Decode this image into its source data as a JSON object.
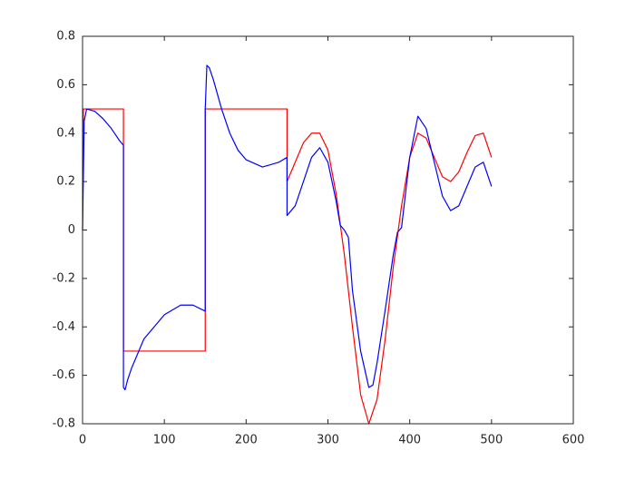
{
  "chart_data": {
    "type": "line",
    "xlim": [
      0,
      600
    ],
    "ylim": [
      -0.8,
      0.8
    ],
    "xticks": [
      0,
      100,
      200,
      300,
      400,
      500,
      600
    ],
    "yticks": [
      -0.8,
      -0.6,
      -0.4,
      -0.2,
      0,
      0.2,
      0.4,
      0.6,
      0.8
    ],
    "grid": false,
    "series": [
      {
        "color": "#ff0000",
        "x": [
          0,
          1,
          50,
          50,
          150,
          150,
          250,
          250,
          260,
          270,
          280,
          290,
          300,
          310,
          320,
          330,
          340,
          350,
          360,
          370,
          380,
          390,
          400,
          410,
          420,
          430,
          440,
          450,
          460,
          470,
          480,
          490,
          500
        ],
        "values": [
          0,
          0.5,
          0.5,
          -0.5,
          -0.5,
          0.5,
          0.5,
          0.2,
          0.28,
          0.36,
          0.4,
          0.4,
          0.33,
          0.15,
          -0.1,
          -0.4,
          -0.68,
          -0.8,
          -0.7,
          -0.45,
          -0.15,
          0.1,
          0.3,
          0.4,
          0.38,
          0.3,
          0.22,
          0.2,
          0.24,
          0.32,
          0.39,
          0.4,
          0.3
        ]
      },
      {
        "color": "#0000ff",
        "x": [
          0,
          2,
          5,
          15,
          25,
          35,
          45,
          50,
          50,
          52,
          55,
          60,
          75,
          100,
          120,
          135,
          150,
          150,
          152,
          155,
          160,
          170,
          180,
          190,
          200,
          220,
          240,
          250,
          250,
          260,
          270,
          280,
          290,
          300,
          310,
          315,
          320,
          325,
          330,
          340,
          350,
          355,
          360,
          370,
          380,
          385,
          390,
          400,
          410,
          420,
          430,
          440,
          450,
          460,
          470,
          480,
          490,
          500
        ],
        "values": [
          0,
          0.45,
          0.5,
          0.49,
          0.46,
          0.42,
          0.37,
          0.35,
          -0.65,
          -0.66,
          -0.62,
          -0.57,
          -0.45,
          -0.35,
          -0.31,
          -0.31,
          -0.335,
          0.5,
          0.68,
          0.67,
          0.62,
          0.5,
          0.4,
          0.33,
          0.29,
          0.26,
          0.28,
          0.3,
          0.06,
          0.1,
          0.2,
          0.3,
          0.34,
          0.28,
          0.12,
          0.02,
          0,
          -0.03,
          -0.25,
          -0.5,
          -0.65,
          -0.64,
          -0.55,
          -0.33,
          -0.1,
          -0.01,
          0.01,
          0.3,
          0.47,
          0.42,
          0.28,
          0.14,
          0.08,
          0.1,
          0.18,
          0.26,
          0.28,
          0.18
        ]
      }
    ]
  }
}
